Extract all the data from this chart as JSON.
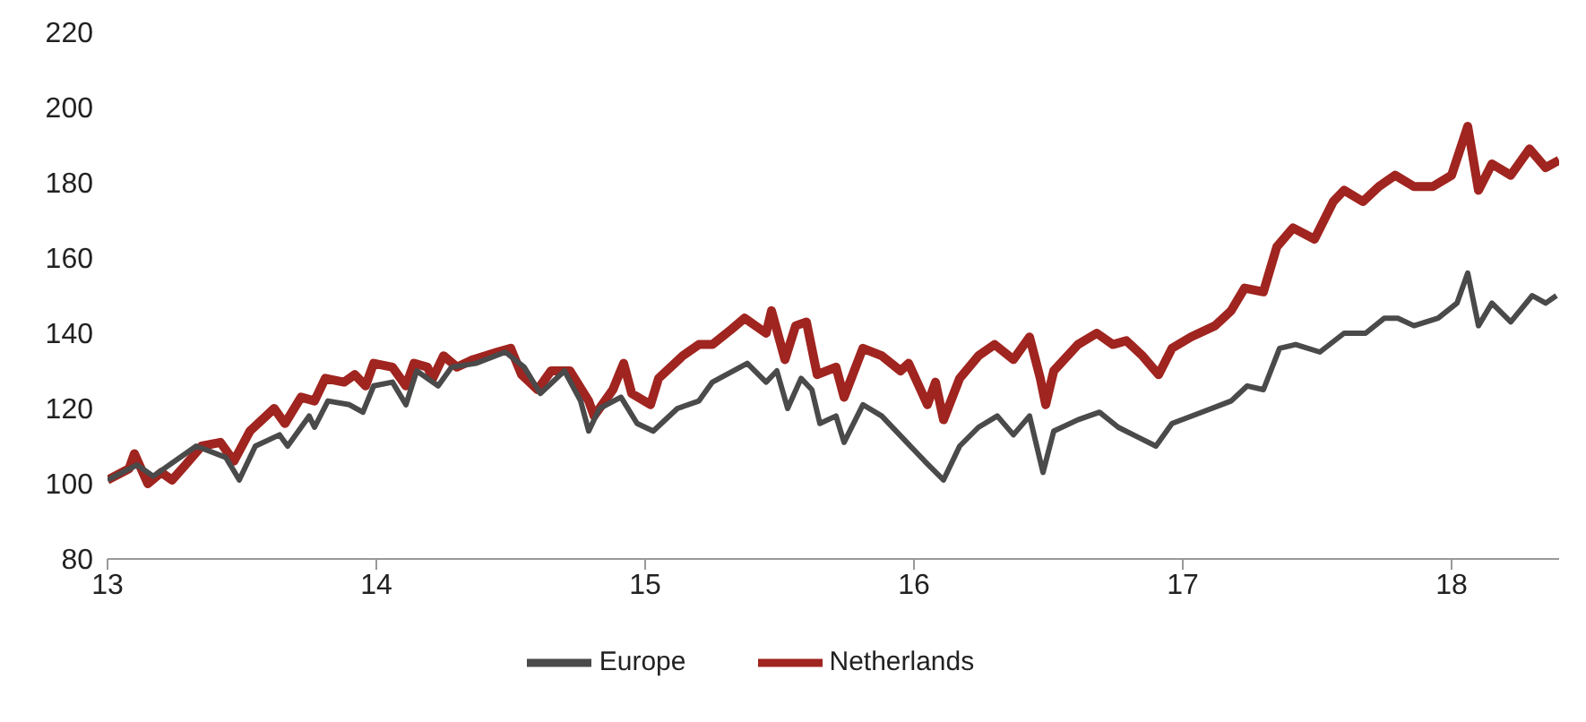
{
  "chart_data": {
    "type": "line",
    "xlim": [
      13,
      18.4
    ],
    "xticks": [
      13,
      14,
      15,
      16,
      17,
      18
    ],
    "ylim": [
      80,
      220
    ],
    "yticks": [
      80,
      100,
      120,
      140,
      160,
      180,
      200,
      220
    ],
    "grid": false,
    "legend": "bottom",
    "marker": "none",
    "line_style": "solid",
    "series": [
      {
        "name": "Netherlands",
        "color": "#a0241f",
        "x": [
          13.0,
          13.08,
          13.1,
          13.15,
          13.2,
          13.24,
          13.29,
          13.35,
          13.42,
          13.47,
          13.53,
          13.62,
          13.66,
          13.72,
          13.77,
          13.81,
          13.88,
          13.92,
          13.96,
          13.99,
          14.06,
          14.11,
          14.14,
          14.19,
          14.21,
          14.25,
          14.3,
          14.36,
          14.45,
          14.5,
          14.54,
          14.6,
          14.65,
          14.72,
          14.79,
          14.81,
          14.88,
          14.92,
          14.95,
          15.02,
          15.05,
          15.14,
          15.2,
          15.25,
          15.32,
          15.37,
          15.45,
          15.47,
          15.52,
          15.56,
          15.6,
          15.64,
          15.71,
          15.74,
          15.81,
          15.88,
          15.95,
          15.98,
          16.05,
          16.08,
          16.11,
          16.17,
          16.24,
          16.3,
          16.37,
          16.43,
          16.47,
          16.49,
          16.52,
          16.61,
          16.68,
          16.74,
          16.79,
          16.85,
          16.91,
          16.96,
          17.03,
          17.12,
          17.18,
          17.23,
          17.3,
          17.35,
          17.41,
          17.49,
          17.56,
          17.6,
          17.67,
          17.73,
          17.79,
          17.86,
          17.93,
          18.0,
          18.06,
          18.1,
          18.15,
          18.22,
          18.29,
          18.35,
          18.4
        ],
        "values": [
          101,
          104,
          108,
          100,
          103,
          101,
          105,
          110,
          111,
          106,
          114,
          120,
          116,
          123,
          122,
          128,
          127,
          129,
          126,
          132,
          131,
          126,
          132,
          131,
          128,
          134,
          131,
          133,
          135,
          136,
          129,
          125,
          130,
          130,
          122,
          118,
          125,
          132,
          124,
          121,
          128,
          134,
          137,
          137,
          141,
          144,
          140,
          146,
          133,
          142,
          143,
          129,
          131,
          123,
          136,
          134,
          130,
          132,
          121,
          127,
          117,
          128,
          134,
          137,
          133,
          139,
          128,
          121,
          130,
          137,
          140,
          137,
          138,
          134,
          129,
          136,
          139,
          142,
          146,
          152,
          151,
          163,
          168,
          165,
          175,
          178,
          175,
          179,
          182,
          179,
          179,
          182,
          195,
          178,
          185,
          182,
          189,
          184,
          186
        ]
      },
      {
        "name": "Europe",
        "color": "#4a4a4a",
        "x": [
          13.0,
          13.11,
          13.17,
          13.33,
          13.44,
          13.49,
          13.55,
          13.64,
          13.67,
          13.75,
          13.77,
          13.82,
          13.9,
          13.95,
          13.99,
          14.06,
          14.11,
          14.15,
          14.23,
          14.28,
          14.37,
          14.48,
          14.55,
          14.61,
          14.7,
          14.76,
          14.79,
          14.83,
          14.91,
          14.97,
          15.03,
          15.12,
          15.2,
          15.25,
          15.38,
          15.45,
          15.49,
          15.53,
          15.58,
          15.62,
          15.65,
          15.71,
          15.74,
          15.81,
          15.88,
          15.96,
          16.04,
          16.11,
          16.17,
          16.24,
          16.31,
          16.37,
          16.43,
          16.48,
          16.52,
          16.61,
          16.69,
          16.76,
          16.9,
          16.96,
          17.07,
          17.18,
          17.24,
          17.3,
          17.36,
          17.42,
          17.51,
          17.6,
          17.68,
          17.75,
          17.8,
          17.86,
          17.95,
          18.02,
          18.06,
          18.1,
          18.15,
          18.22,
          18.3,
          18.35,
          18.39
        ],
        "values": [
          101,
          105,
          102,
          110,
          107,
          101,
          110,
          113,
          110,
          118,
          115,
          122,
          121,
          119,
          126,
          127,
          121,
          130,
          126,
          131,
          132,
          135,
          131,
          124,
          130,
          122,
          114,
          120,
          123,
          116,
          114,
          120,
          122,
          127,
          132,
          127,
          130,
          120,
          128,
          125,
          116,
          118,
          111,
          121,
          118,
          112,
          106,
          101,
          110,
          115,
          118,
          113,
          118,
          103,
          114,
          117,
          119,
          115,
          110,
          116,
          119,
          122,
          126,
          125,
          136,
          137,
          135,
          140,
          140,
          144,
          144,
          142,
          144,
          148,
          156,
          142,
          148,
          143,
          150,
          148,
          150
        ]
      }
    ]
  }
}
